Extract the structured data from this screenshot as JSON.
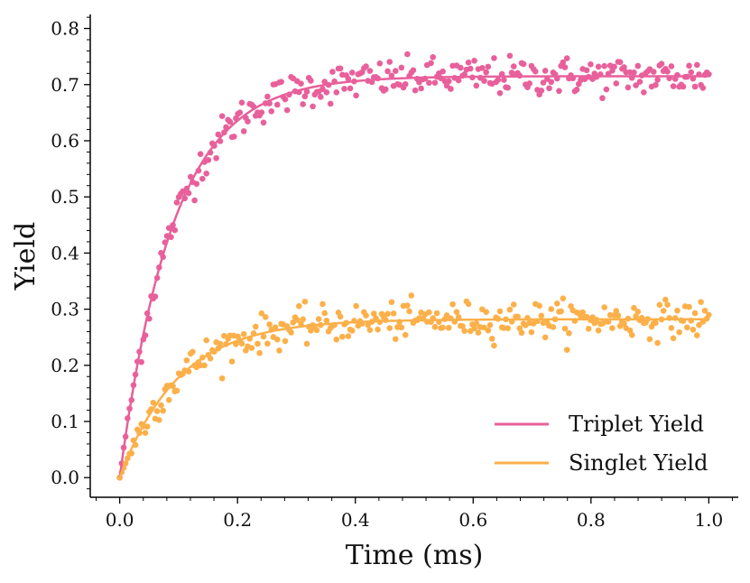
{
  "chart_data": {
    "type": "scatter",
    "title": "",
    "xlabel": "Time (ms)",
    "ylabel": "Yield",
    "xlim": [
      -0.05,
      1.05
    ],
    "ylim": [
      -0.035,
      0.825
    ],
    "xticks": [
      0.0,
      0.2,
      0.4,
      0.6,
      0.8,
      1.0
    ],
    "xtick_labels": [
      "0.0",
      "0.2",
      "0.4",
      "0.6",
      "0.8",
      "1.0"
    ],
    "yticks": [
      0.0,
      0.1,
      0.2,
      0.3,
      0.4,
      0.5,
      0.6,
      0.7,
      0.8
    ],
    "ytick_labels": [
      "0.0",
      "0.1",
      "0.2",
      "0.3",
      "0.4",
      "0.5",
      "0.6",
      "0.7",
      "0.8"
    ],
    "grid": false,
    "legend_position": "lower-right",
    "series": [
      {
        "name": "Triplet Yield",
        "color": "#e8609b",
        "model": "saturating exponential",
        "plateau": 0.715,
        "rate_per_ms": 11.0,
        "noise": 0.017,
        "n_points": 300,
        "t_range": [
          0.0,
          1.0
        ]
      },
      {
        "name": "Singlet Yield",
        "color": "#fcb04a",
        "model": "saturating exponential",
        "plateau": 0.282,
        "rate_per_ms": 10.0,
        "noise": 0.016,
        "n_points": 300,
        "t_range": [
          0.0,
          1.0
        ]
      }
    ]
  }
}
